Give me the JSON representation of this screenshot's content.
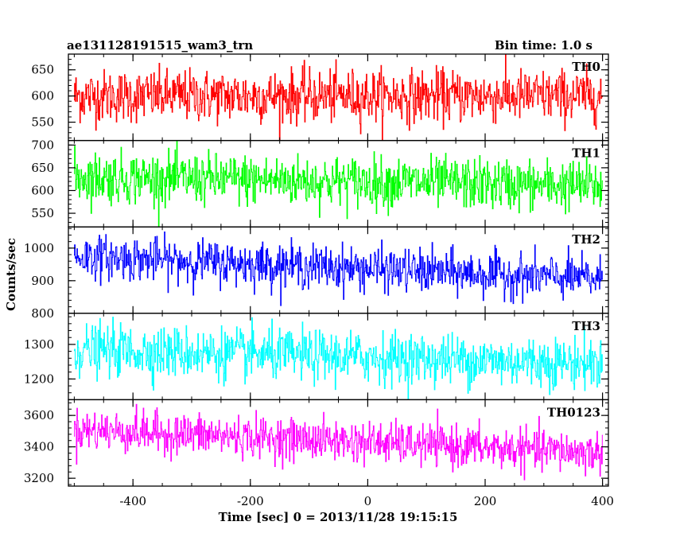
{
  "header": {
    "title": "ae131128191515_wam3_trn",
    "bin_time": "Bin time: 1.0 s"
  },
  "axes": {
    "xlabel": "Time [sec] 0 = 2013/11/28 19:15:15",
    "ylabel": "Counts/sec",
    "xlim": [
      -510,
      410
    ],
    "xticks": [
      -400,
      -200,
      0,
      200,
      400
    ]
  },
  "chart_data": {
    "type": "line",
    "xlabel": "Time [sec] 0 = 2013/11/28 19:15:15",
    "ylabel": "Counts/sec",
    "x_range": [
      -500,
      400
    ],
    "bin_seconds": 1.0,
    "panels": [
      {
        "name": "TH0",
        "color": "#ff0000",
        "ylim": [
          515,
          680
        ],
        "yticks": [
          550,
          600,
          650
        ],
        "trend": [
          [
            -500,
            600
          ],
          [
            400,
            600
          ]
        ],
        "noise_sigma": 25
      },
      {
        "name": "TH1",
        "color": "#00ff00",
        "ylim": [
          520,
          710
        ],
        "yticks": [
          550,
          600,
          650,
          700
        ],
        "trend": [
          [
            -500,
            630
          ],
          [
            400,
            610
          ]
        ],
        "noise_sigma": 28
      },
      {
        "name": "TH2",
        "color": "#0000ff",
        "ylim": [
          800,
          1065
        ],
        "yticks": [
          800,
          900,
          1000
        ],
        "trend": [
          [
            -500,
            975
          ],
          [
            400,
            905
          ]
        ],
        "noise_sigma": 33
      },
      {
        "name": "TH3",
        "color": "#00ffff",
        "ylim": [
          1140,
          1390
        ],
        "yticks": [
          1200,
          1300
        ],
        "trend": [
          [
            -500,
            1285
          ],
          [
            400,
            1245
          ]
        ],
        "noise_sigma": 37
      },
      {
        "name": "TH0123",
        "color": "#ff00ff",
        "ylim": [
          3150,
          3700
        ],
        "yticks": [
          3200,
          3400,
          3600
        ],
        "trend": [
          [
            -500,
            3510
          ],
          [
            0,
            3430
          ],
          [
            400,
            3360
          ]
        ],
        "noise_sigma": 65
      }
    ]
  }
}
